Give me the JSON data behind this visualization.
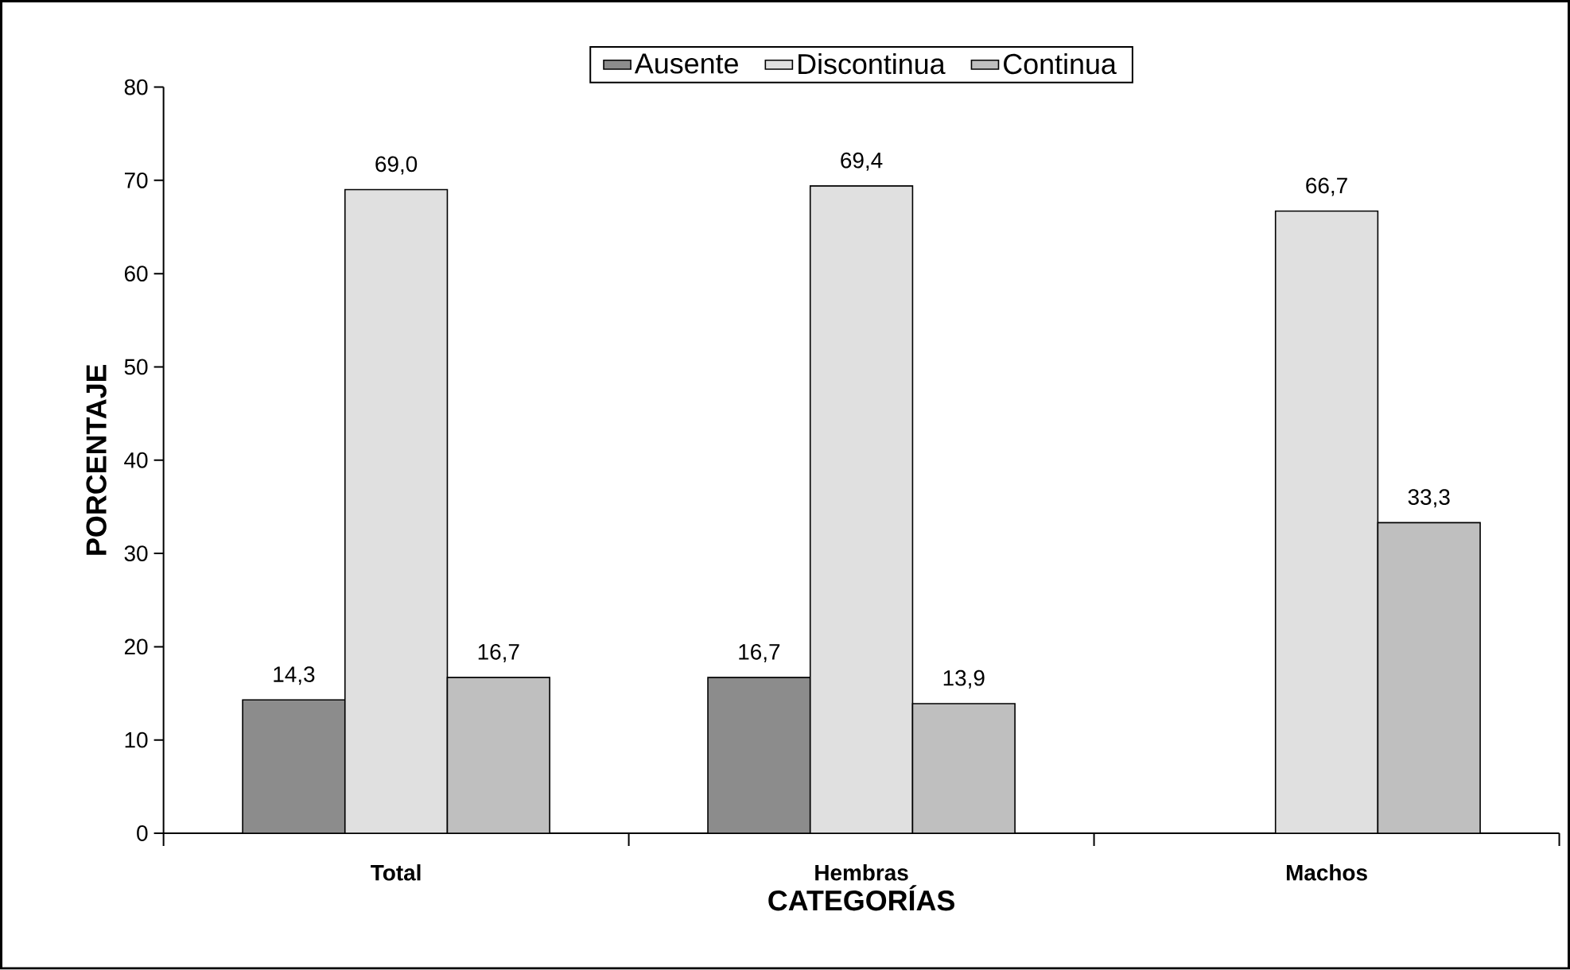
{
  "chart_data": {
    "type": "bar",
    "xlabel": "CATEGORÍAS",
    "ylabel": "PORCENTAJE",
    "categories": [
      "Total",
      "Hembras",
      "Machos"
    ],
    "series": [
      {
        "name": "Ausente",
        "color": "#8c8c8c",
        "values": [
          14.3,
          16.7,
          null
        ],
        "value_labels": [
          "14,3",
          "16,7",
          null
        ]
      },
      {
        "name": "Discontinua",
        "color": "#e0e0e0",
        "values": [
          69.0,
          69.4,
          66.7
        ],
        "value_labels": [
          "69,0",
          "69,4",
          "66,7"
        ]
      },
      {
        "name": "Continua",
        "color": "#bfbfbf",
        "values": [
          16.7,
          13.9,
          33.3
        ],
        "value_labels": [
          "16,7",
          "13,9",
          "33,3"
        ]
      }
    ],
    "ylim": [
      0,
      80
    ],
    "yticks": [
      0,
      10,
      20,
      30,
      40,
      50,
      60,
      70,
      80
    ],
    "grid": false,
    "legend": "top"
  }
}
